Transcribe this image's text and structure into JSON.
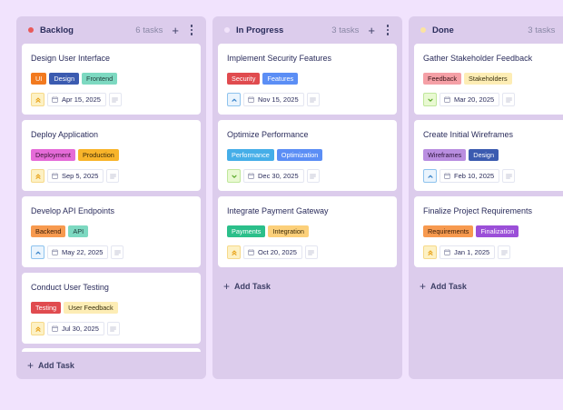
{
  "columns": [
    {
      "title": "Backlog",
      "count": "6 tasks",
      "dot_color": "#e85a5a",
      "add_task_label": "Add Task",
      "cards": [
        {
          "title": "Design User Interface",
          "tags": [
            {
              "label": "UI",
              "bg": "#f27a1f",
              "fg": "#ffffff"
            },
            {
              "label": "Design",
              "bg": "#3b5bb0",
              "fg": "#ffffff"
            },
            {
              "label": "Frontend",
              "bg": "#7dd9c1",
              "fg": "#1f3b3a"
            }
          ],
          "priority": "urgent",
          "date": "Apr 15, 2025"
        },
        {
          "title": "Deploy Application",
          "tags": [
            {
              "label": "Deployment",
              "bg": "#e56bd8",
              "fg": "#3a1535"
            },
            {
              "label": "Production",
              "bg": "#f8b42a",
              "fg": "#3a2a08"
            }
          ],
          "priority": "urgent",
          "date": "Sep 5, 2025"
        },
        {
          "title": "Develop API Endpoints",
          "tags": [
            {
              "label": "Backend",
              "bg": "#f79a4f",
              "fg": "#3a1e08"
            },
            {
              "label": "API",
              "bg": "#7dd9c1",
              "fg": "#1f3b3a"
            }
          ],
          "priority": "high",
          "date": "May 22, 2025"
        },
        {
          "title": "Conduct User Testing",
          "tags": [
            {
              "label": "Testing",
              "bg": "#e04b4f",
              "fg": "#ffffff"
            },
            {
              "label": "User Feedback",
              "bg": "#fdedb5",
              "fg": "#3a3210"
            }
          ],
          "priority": "urgent",
          "date": "Jul 30, 2025"
        }
      ],
      "has_stub": true
    },
    {
      "title": "In Progress",
      "count": "3 tasks",
      "dot_color": "#f2e4fb",
      "add_task_label": "Add Task",
      "cards": [
        {
          "title": "Implement Security Features",
          "tags": [
            {
              "label": "Security",
              "bg": "#e04b4f",
              "fg": "#ffffff"
            },
            {
              "label": "Features",
              "bg": "#5b8ef5",
              "fg": "#ffffff"
            }
          ],
          "priority": "high",
          "date": "Nov 15, 2025"
        },
        {
          "title": "Optimize Performance",
          "tags": [
            {
              "label": "Performance",
              "bg": "#45aee8",
              "fg": "#ffffff"
            },
            {
              "label": "Optimization",
              "bg": "#5b8ef5",
              "fg": "#ffffff"
            }
          ],
          "priority": "low",
          "date": "Dec 30, 2025"
        },
        {
          "title": "Integrate Payment Gateway",
          "tags": [
            {
              "label": "Payments",
              "bg": "#2bbf8a",
              "fg": "#ffffff"
            },
            {
              "label": "Integration",
              "bg": "#fcd07a",
              "fg": "#3a2a08"
            }
          ],
          "priority": "urgent",
          "date": "Oct 20, 2025"
        }
      ],
      "has_stub": false
    },
    {
      "title": "Done",
      "count": "3 tasks",
      "dot_color": "#fbe3a0",
      "add_task_label": "Add Task",
      "cards": [
        {
          "title": "Gather Stakeholder Feedback",
          "tags": [
            {
              "label": "Feedback",
              "bg": "#f5a0a6",
              "fg": "#3a1418"
            },
            {
              "label": "Stakeholders",
              "bg": "#fdedb5",
              "fg": "#3a3210"
            }
          ],
          "priority": "low",
          "date": "Mar 20, 2025"
        },
        {
          "title": "Create Initial Wireframes",
          "tags": [
            {
              "label": "Wireframes",
              "bg": "#b98ee0",
              "fg": "#2a143a"
            },
            {
              "label": "Design",
              "bg": "#3b5bb0",
              "fg": "#ffffff"
            }
          ],
          "priority": "high",
          "date": "Feb 10, 2025"
        },
        {
          "title": "Finalize Project Requirements",
          "tags": [
            {
              "label": "Requirements",
              "bg": "#f79a4f",
              "fg": "#3a1e08"
            },
            {
              "label": "Finalization",
              "bg": "#9b4fd8",
              "fg": "#ffffff"
            }
          ],
          "priority": "urgent",
          "date": "Jan 1, 2025"
        }
      ],
      "has_stub": false
    }
  ],
  "priority_styles": {
    "urgent": {
      "bg": "#fdf1c4",
      "border": "#f6d98a",
      "color": "#e8a21a",
      "icon": "double-chevron-up"
    },
    "high": {
      "bg": "#eaf4fd",
      "border": "#8ec3ee",
      "color": "#3a84c9",
      "icon": "chevron-up"
    },
    "low": {
      "bg": "#e9f9d2",
      "border": "#bfe79b",
      "color": "#5aa82a",
      "icon": "chevron-down"
    }
  }
}
